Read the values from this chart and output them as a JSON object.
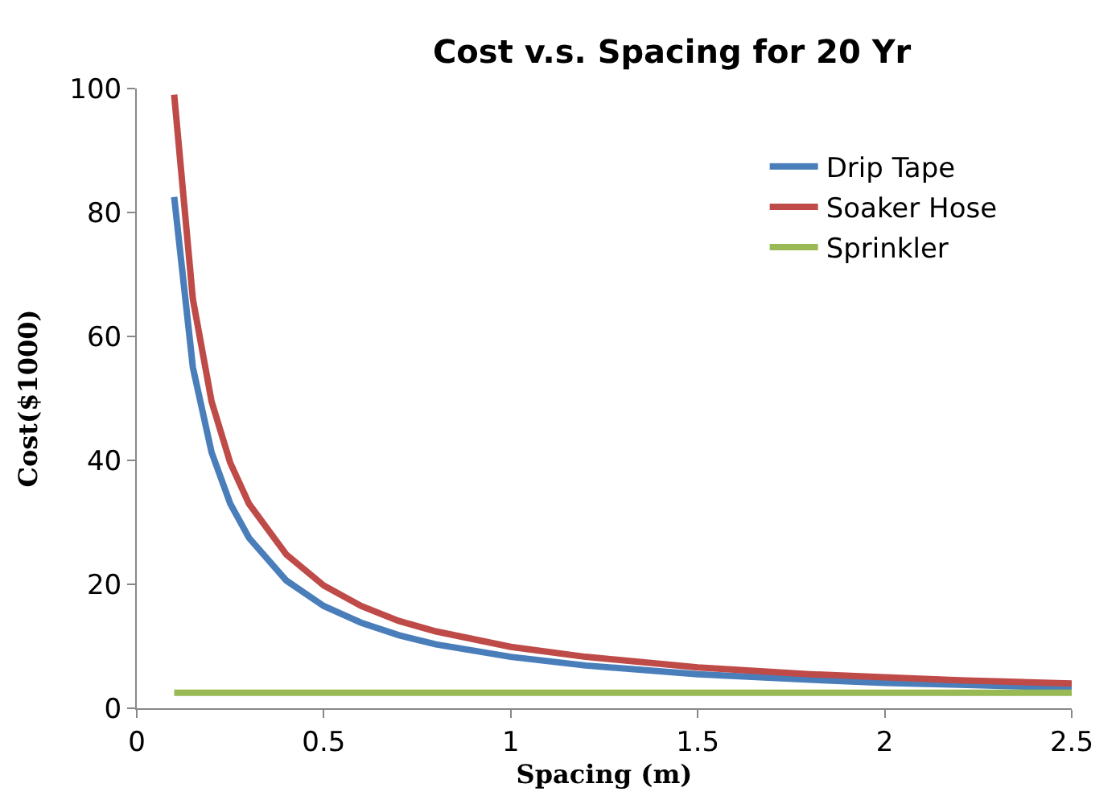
{
  "chart_data": {
    "type": "line",
    "title": "Cost v.s. Spacing for 20 Yr",
    "xlabel": "Spacing (m)",
    "ylabel": "Cost($1000)",
    "xlim": [
      0,
      2.5
    ],
    "xticks": [
      0,
      0.5,
      1,
      1.5,
      2,
      2.5
    ],
    "ylim": [
      0,
      100
    ],
    "yticks": [
      0,
      20,
      40,
      60,
      80,
      100
    ],
    "grid": false,
    "legend": "top right",
    "marker": "none",
    "line_style": "solid",
    "series": [
      {
        "name": "Drip Tape",
        "color": "#4a7ebb",
        "x": [
          0.1,
          0.15,
          0.2,
          0.25,
          0.3,
          0.4,
          0.5,
          0.6,
          0.7,
          0.8,
          1.0,
          1.2,
          1.5,
          1.8,
          2.0,
          2.2,
          2.5
        ],
        "values": [
          82.5,
          55,
          41.3,
          33,
          27.5,
          20.6,
          16.5,
          13.8,
          11.8,
          10.3,
          8.3,
          6.9,
          5.5,
          4.6,
          4.1,
          3.8,
          3.3
        ]
      },
      {
        "name": "Soaker Hose",
        "color": "#be4b48",
        "x": [
          0.1,
          0.15,
          0.2,
          0.25,
          0.3,
          0.4,
          0.5,
          0.6,
          0.7,
          0.8,
          1.0,
          1.2,
          1.5,
          1.8,
          2.0,
          2.2,
          2.5
        ],
        "values": [
          99,
          66,
          49.5,
          39.6,
          33,
          24.8,
          19.8,
          16.5,
          14.1,
          12.4,
          9.9,
          8.3,
          6.6,
          5.5,
          5,
          4.5,
          4
        ]
      },
      {
        "name": "Sprinkler",
        "color": "#98b954",
        "x": [
          0.1,
          2.5
        ],
        "values": [
          2.5,
          2.5
        ]
      }
    ]
  }
}
